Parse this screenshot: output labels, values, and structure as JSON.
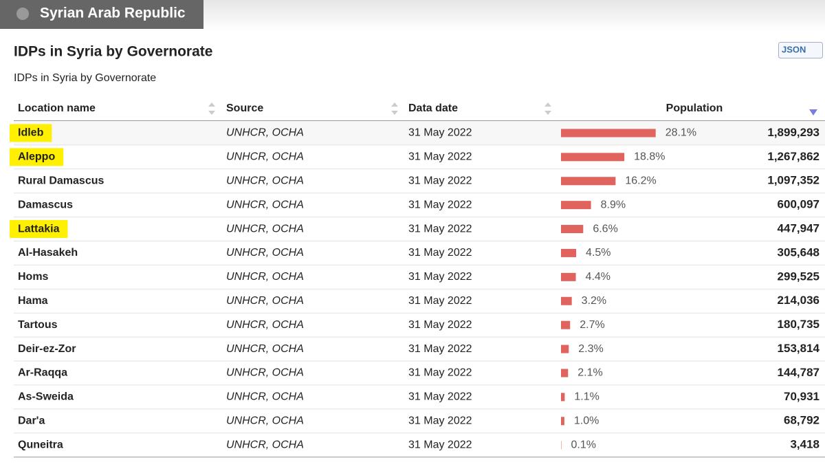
{
  "header": {
    "title": "Syrian Arab Republic"
  },
  "section": {
    "title": "IDPs in Syria by Governorate",
    "subtitle": "IDPs in Syria by Governorate",
    "json_button": "JSON"
  },
  "table": {
    "columns": [
      "Location name",
      "Source",
      "Data date",
      "Population"
    ],
    "rows": [
      {
        "name": "Idleb",
        "highlighted": true,
        "source": "UNHCR, OCHA",
        "date": "31 May 2022",
        "share": {
          "value": 28.1,
          "label": "28.1%"
        },
        "population": "1,899,293"
      },
      {
        "name": "Aleppo",
        "highlighted": true,
        "source": "UNHCR, OCHA",
        "date": "31 May 2022",
        "share": {
          "value": 18.8,
          "label": "18.8%"
        },
        "population": "1,267,862"
      },
      {
        "name": "Rural Damascus",
        "highlighted": false,
        "source": "UNHCR, OCHA",
        "date": "31 May 2022",
        "share": {
          "value": 16.2,
          "label": "16.2%"
        },
        "population": "1,097,352"
      },
      {
        "name": "Damascus",
        "highlighted": false,
        "source": "UNHCR, OCHA",
        "date": "31 May 2022",
        "share": {
          "value": 8.9,
          "label": "8.9%"
        },
        "population": "600,097"
      },
      {
        "name": "Lattakia",
        "highlighted": true,
        "source": "UNHCR, OCHA",
        "date": "31 May 2022",
        "share": {
          "value": 6.6,
          "label": "6.6%"
        },
        "population": "447,947"
      },
      {
        "name": "Al-Hasakeh",
        "highlighted": false,
        "source": "UNHCR, OCHA",
        "date": "31 May 2022",
        "share": {
          "value": 4.5,
          "label": "4.5%"
        },
        "population": "305,648"
      },
      {
        "name": "Homs",
        "highlighted": false,
        "source": "UNHCR, OCHA",
        "date": "31 May 2022",
        "share": {
          "value": 4.4,
          "label": "4.4%"
        },
        "population": "299,525"
      },
      {
        "name": "Hama",
        "highlighted": false,
        "source": "UNHCR, OCHA",
        "date": "31 May 2022",
        "share": {
          "value": 3.2,
          "label": "3.2%"
        },
        "population": "214,036"
      },
      {
        "name": "Tartous",
        "highlighted": false,
        "source": "UNHCR, OCHA",
        "date": "31 May 2022",
        "share": {
          "value": 2.7,
          "label": "2.7%"
        },
        "population": "180,735"
      },
      {
        "name": "Deir-ez-Zor",
        "highlighted": false,
        "source": "UNHCR, OCHA",
        "date": "31 May 2022",
        "share": {
          "value": 2.3,
          "label": "2.3%"
        },
        "population": "153,814"
      },
      {
        "name": "Ar-Raqqa",
        "highlighted": false,
        "source": "UNHCR, OCHA",
        "date": "31 May 2022",
        "share": {
          "value": 2.1,
          "label": "2.1%"
        },
        "population": "144,787"
      },
      {
        "name": "As-Sweida",
        "highlighted": false,
        "source": "UNHCR, OCHA",
        "date": "31 May 2022",
        "share": {
          "value": 1.1,
          "label": "1.1%"
        },
        "population": "70,931"
      },
      {
        "name": "Dar'a",
        "highlighted": false,
        "source": "UNHCR, OCHA",
        "date": "31 May 2022",
        "share": {
          "value": 1.0,
          "label": "1.0%"
        },
        "population": "68,792"
      },
      {
        "name": "Quneitra",
        "highlighted": false,
        "source": "UNHCR, OCHA",
        "date": "31 May 2022",
        "share": {
          "value": 0.1,
          "label": "0.1%"
        },
        "population": "3,418"
      }
    ]
  }
}
